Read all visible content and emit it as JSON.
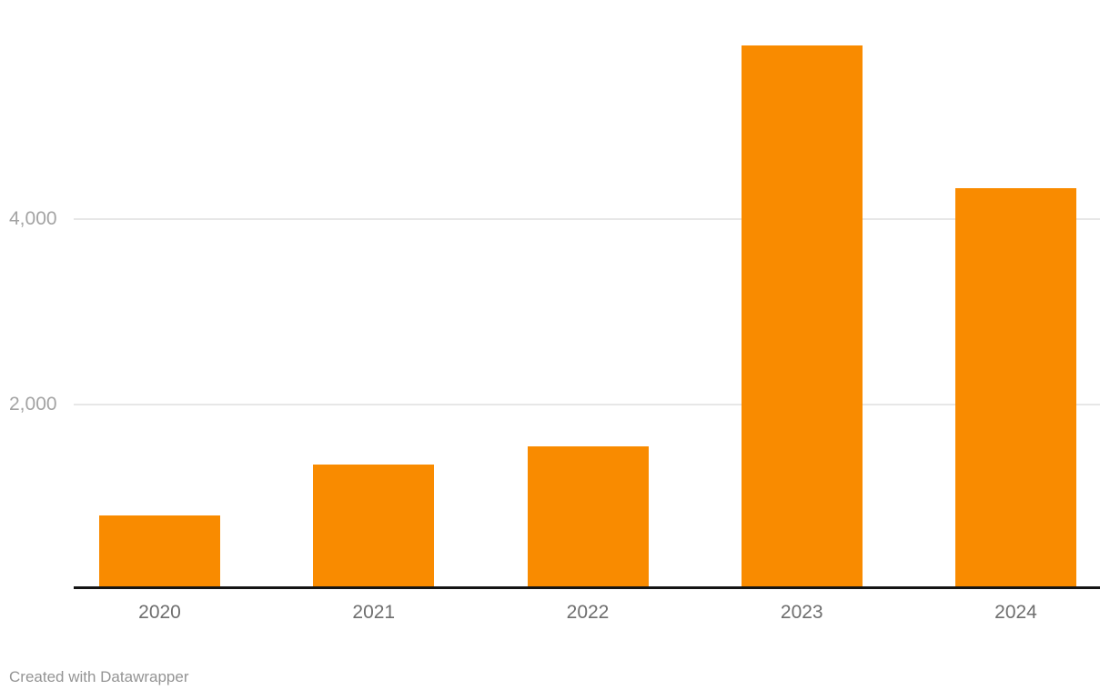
{
  "chart_data": {
    "type": "bar",
    "categories": [
      "2020",
      "2021",
      "2022",
      "2023",
      "2024"
    ],
    "values": [
      800,
      1350,
      1540,
      5880,
      4330
    ],
    "title": "",
    "xlabel": "",
    "ylabel": "",
    "ylim": [
      0,
      6000
    ],
    "yticks": [
      2000,
      4000
    ],
    "ytick_labels": [
      "2,000",
      "4,000"
    ],
    "grid": "horizontal-only",
    "legend": "none",
    "bar_color": "#f98b00"
  },
  "footer": {
    "credit": "Created with Datawrapper"
  },
  "colors": {
    "background": "#ffffff",
    "bar": "#f98b00",
    "gridline": "#e7e7e7",
    "axis_line": "#141414",
    "y_tick_text": "#a3a3a3",
    "x_tick_text": "#6e6e6e",
    "footer_text": "#949494"
  }
}
